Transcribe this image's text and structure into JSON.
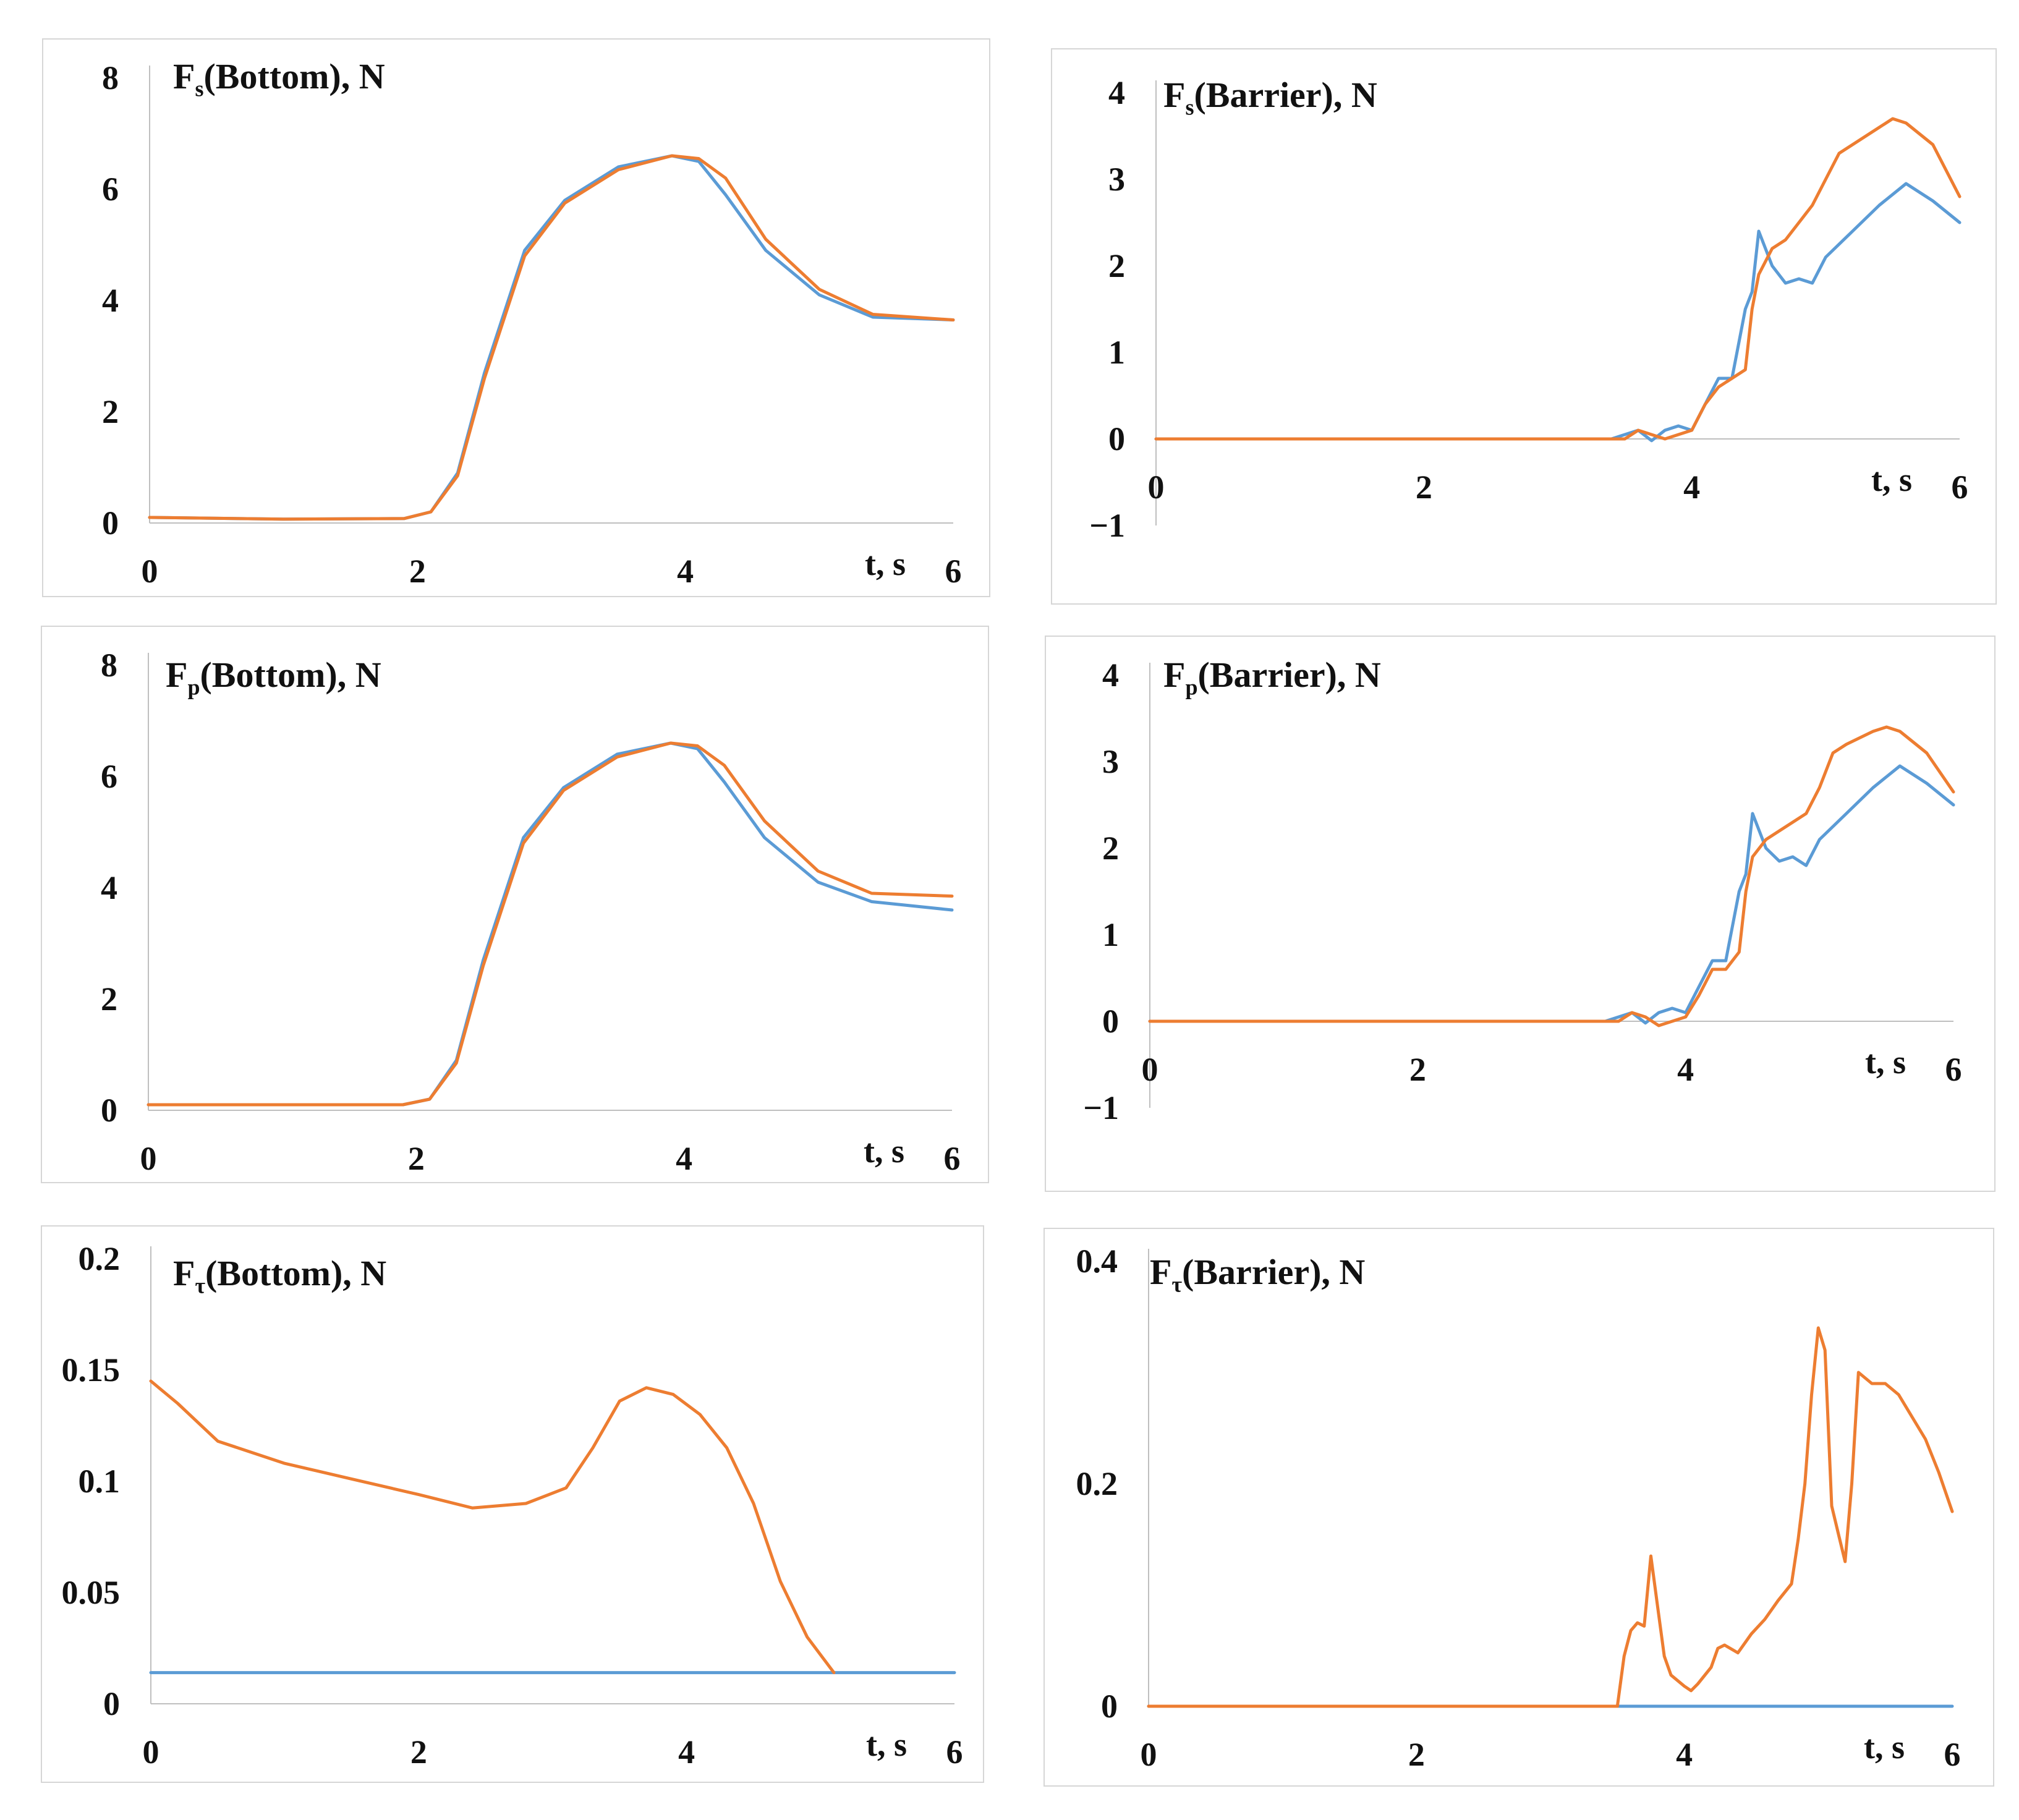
{
  "colors": {
    "series_a": "#5b9bd5",
    "series_b": "#ed7d31",
    "axis": "#bfbfbf"
  },
  "chart_data": [
    {
      "id": "fs-bottom",
      "type": "line",
      "title": {
        "main": "F",
        "sub": "s",
        "rest": "(Bottom), N"
      },
      "xlabel": "t, s",
      "xlim": [
        0,
        6
      ],
      "ylim": [
        0,
        8
      ],
      "xticks": [
        0,
        2,
        4
      ],
      "yticks": [
        "8",
        "6",
        "4",
        "2",
        "0"
      ],
      "series": [
        {
          "name": "blue",
          "x": [
            0,
            1,
            1.9,
            2.1,
            2.3,
            2.5,
            2.8,
            3.1,
            3.5,
            3.9,
            4.1,
            4.3,
            4.6,
            5.0,
            5.4,
            6.0
          ],
          "y": [
            0.1,
            0.07,
            0.08,
            0.2,
            0.9,
            2.7,
            4.9,
            5.8,
            6.4,
            6.6,
            6.5,
            5.9,
            4.9,
            4.1,
            3.7,
            3.65
          ]
        },
        {
          "name": "orange",
          "x": [
            0,
            1,
            1.9,
            2.1,
            2.3,
            2.5,
            2.8,
            3.1,
            3.5,
            3.9,
            4.1,
            4.3,
            4.6,
            5.0,
            5.4,
            6.0
          ],
          "y": [
            0.1,
            0.07,
            0.08,
            0.2,
            0.85,
            2.6,
            4.8,
            5.75,
            6.35,
            6.6,
            6.55,
            6.2,
            5.1,
            4.2,
            3.75,
            3.65
          ]
        }
      ]
    },
    {
      "id": "fs-barrier",
      "type": "line",
      "title": {
        "main": "F",
        "sub": "s",
        "rest": "(Barrier), N"
      },
      "xlabel": "t, s",
      "xlim": [
        0,
        6
      ],
      "ylim": [
        -1,
        4
      ],
      "xticks": [
        0,
        2,
        4
      ],
      "yticks": [
        "4",
        "3",
        "2",
        "1",
        "0",
        "−1"
      ],
      "series": [
        {
          "name": "blue",
          "x": [
            0,
            3.4,
            3.5,
            3.6,
            3.7,
            3.8,
            3.9,
            4.0,
            4.1,
            4.2,
            4.3,
            4.4,
            4.45,
            4.5,
            4.6,
            4.7,
            4.8,
            4.9,
            5.0,
            5.2,
            5.4,
            5.6,
            5.8,
            6.0
          ],
          "y": [
            0,
            0,
            0.05,
            0.1,
            -0.02,
            0.1,
            0.15,
            0.1,
            0.4,
            0.7,
            0.7,
            1.5,
            1.7,
            2.4,
            2.0,
            1.8,
            1.85,
            1.8,
            2.1,
            2.4,
            2.7,
            2.95,
            2.75,
            2.5
          ]
        },
        {
          "name": "orange",
          "x": [
            0,
            3.5,
            3.6,
            3.7,
            3.8,
            3.9,
            4.0,
            4.1,
            4.2,
            4.3,
            4.4,
            4.45,
            4.5,
            4.6,
            4.7,
            4.8,
            4.9,
            5.0,
            5.1,
            5.2,
            5.4,
            5.5,
            5.6,
            5.8,
            6.0
          ],
          "y": [
            0,
            0,
            0.1,
            0.05,
            0,
            0.05,
            0.1,
            0.4,
            0.6,
            0.7,
            0.8,
            1.5,
            1.9,
            2.2,
            2.3,
            2.5,
            2.7,
            3.0,
            3.3,
            3.4,
            3.6,
            3.7,
            3.65,
            3.4,
            2.8
          ]
        }
      ]
    },
    {
      "id": "fp-bottom",
      "type": "line",
      "title": {
        "main": "F",
        "sub": "p",
        "rest": "(Bottom), N"
      },
      "xlabel": "t, s",
      "xlim": [
        0,
        6
      ],
      "ylim": [
        0,
        8
      ],
      "xticks": [
        0,
        2,
        4
      ],
      "yticks": [
        "8",
        "6",
        "4",
        "2",
        "0"
      ],
      "series": [
        {
          "name": "blue",
          "x": [
            0,
            1,
            1.9,
            2.1,
            2.3,
            2.5,
            2.8,
            3.1,
            3.5,
            3.9,
            4.1,
            4.3,
            4.6,
            5.0,
            5.4,
            6.0
          ],
          "y": [
            0.1,
            0.1,
            0.1,
            0.2,
            0.9,
            2.7,
            4.9,
            5.8,
            6.4,
            6.6,
            6.5,
            5.9,
            4.9,
            4.1,
            3.75,
            3.6
          ]
        },
        {
          "name": "orange",
          "x": [
            0,
            1,
            1.9,
            2.1,
            2.3,
            2.5,
            2.8,
            3.1,
            3.5,
            3.9,
            4.1,
            4.3,
            4.6,
            5.0,
            5.4,
            6.0
          ],
          "y": [
            0.1,
            0.1,
            0.1,
            0.2,
            0.85,
            2.6,
            4.8,
            5.75,
            6.35,
            6.6,
            6.55,
            6.2,
            5.2,
            4.3,
            3.9,
            3.85
          ]
        }
      ]
    },
    {
      "id": "fp-barrier",
      "type": "line",
      "title": {
        "main": "F",
        "sub": "p",
        "rest": "(Barrier), N"
      },
      "xlabel": "t, s",
      "xlim": [
        0,
        6
      ],
      "ylim": [
        -1,
        4
      ],
      "xticks": [
        0,
        2,
        4
      ],
      "yticks": [
        "4",
        "3",
        "2",
        "1",
        "0",
        "−1"
      ],
      "series": [
        {
          "name": "blue",
          "x": [
            0,
            3.4,
            3.5,
            3.6,
            3.7,
            3.8,
            3.9,
            4.0,
            4.1,
            4.2,
            4.3,
            4.4,
            4.45,
            4.5,
            4.6,
            4.7,
            4.8,
            4.9,
            5.0,
            5.2,
            5.4,
            5.6,
            5.8,
            6.0
          ],
          "y": [
            0,
            0,
            0.05,
            0.1,
            -0.02,
            0.1,
            0.15,
            0.1,
            0.4,
            0.7,
            0.7,
            1.5,
            1.7,
            2.4,
            2.0,
            1.85,
            1.9,
            1.8,
            2.1,
            2.4,
            2.7,
            2.95,
            2.75,
            2.5
          ]
        },
        {
          "name": "orange",
          "x": [
            0,
            3.5,
            3.6,
            3.7,
            3.8,
            3.9,
            4.0,
            4.1,
            4.2,
            4.3,
            4.4,
            4.45,
            4.5,
            4.6,
            4.7,
            4.8,
            4.9,
            5.0,
            5.1,
            5.2,
            5.4,
            5.5,
            5.6,
            5.8,
            6.0
          ],
          "y": [
            0,
            0,
            0.1,
            0.05,
            -0.05,
            0,
            0.05,
            0.3,
            0.6,
            0.6,
            0.8,
            1.5,
            1.9,
            2.1,
            2.2,
            2.3,
            2.4,
            2.7,
            3.1,
            3.2,
            3.35,
            3.4,
            3.35,
            3.1,
            2.65
          ]
        }
      ]
    },
    {
      "id": "ft-bottom",
      "type": "line",
      "title": {
        "main": "F",
        "sub": "τ",
        "rest": "(Bottom), N"
      },
      "xlabel": "t, s",
      "xlim": [
        0,
        6
      ],
      "ylim": [
        0,
        0.2
      ],
      "xticks": [
        0,
        2,
        4
      ],
      "yticks": [
        "0.2",
        "0.15",
        "0.1",
        "0.05",
        "0"
      ],
      "series": [
        {
          "name": "blue",
          "x": [
            0,
            6
          ],
          "y": [
            0.014,
            0.014
          ]
        },
        {
          "name": "orange",
          "x": [
            0,
            0.2,
            0.5,
            1.0,
            1.5,
            2.0,
            2.4,
            2.8,
            3.1,
            3.3,
            3.5,
            3.7,
            3.9,
            4.1,
            4.3,
            4.5,
            4.7,
            4.9,
            5.1
          ],
          "y": [
            0.145,
            0.135,
            0.118,
            0.108,
            0.101,
            0.094,
            0.088,
            0.09,
            0.097,
            0.115,
            0.136,
            0.142,
            0.139,
            0.13,
            0.115,
            0.09,
            0.055,
            0.03,
            0.014
          ]
        }
      ]
    },
    {
      "id": "ft-barrier",
      "type": "line",
      "title": {
        "main": "F",
        "sub": "τ",
        "rest": "(Barrier), N"
      },
      "xlabel": "t, s",
      "xlim": [
        0,
        6
      ],
      "ylim": [
        0,
        0.4
      ],
      "xticks": [
        0,
        2,
        4
      ],
      "yticks": [
        "0.4",
        "0.2",
        "0"
      ],
      "series": [
        {
          "name": "blue",
          "x": [
            0,
            6
          ],
          "y": [
            0,
            0
          ]
        },
        {
          "name": "orange",
          "x": [
            0,
            3.5,
            3.55,
            3.6,
            3.65,
            3.7,
            3.75,
            3.8,
            3.85,
            3.9,
            4.0,
            4.05,
            4.1,
            4.2,
            4.25,
            4.3,
            4.4,
            4.5,
            4.6,
            4.7,
            4.8,
            4.85,
            4.9,
            4.95,
            5.0,
            5.05,
            5.1,
            5.15,
            5.2,
            5.25,
            5.3,
            5.4,
            5.5,
            5.6,
            5.7,
            5.8,
            5.9,
            6.0
          ],
          "y": [
            0,
            0,
            0.045,
            0.068,
            0.075,
            0.072,
            0.135,
            0.09,
            0.045,
            0.028,
            0.018,
            0.014,
            0.02,
            0.035,
            0.052,
            0.055,
            0.048,
            0.065,
            0.078,
            0.095,
            0.11,
            0.15,
            0.2,
            0.28,
            0.34,
            0.32,
            0.18,
            0.155,
            0.13,
            0.2,
            0.3,
            0.29,
            0.29,
            0.28,
            0.26,
            0.24,
            0.21,
            0.175
          ]
        }
      ]
    }
  ]
}
